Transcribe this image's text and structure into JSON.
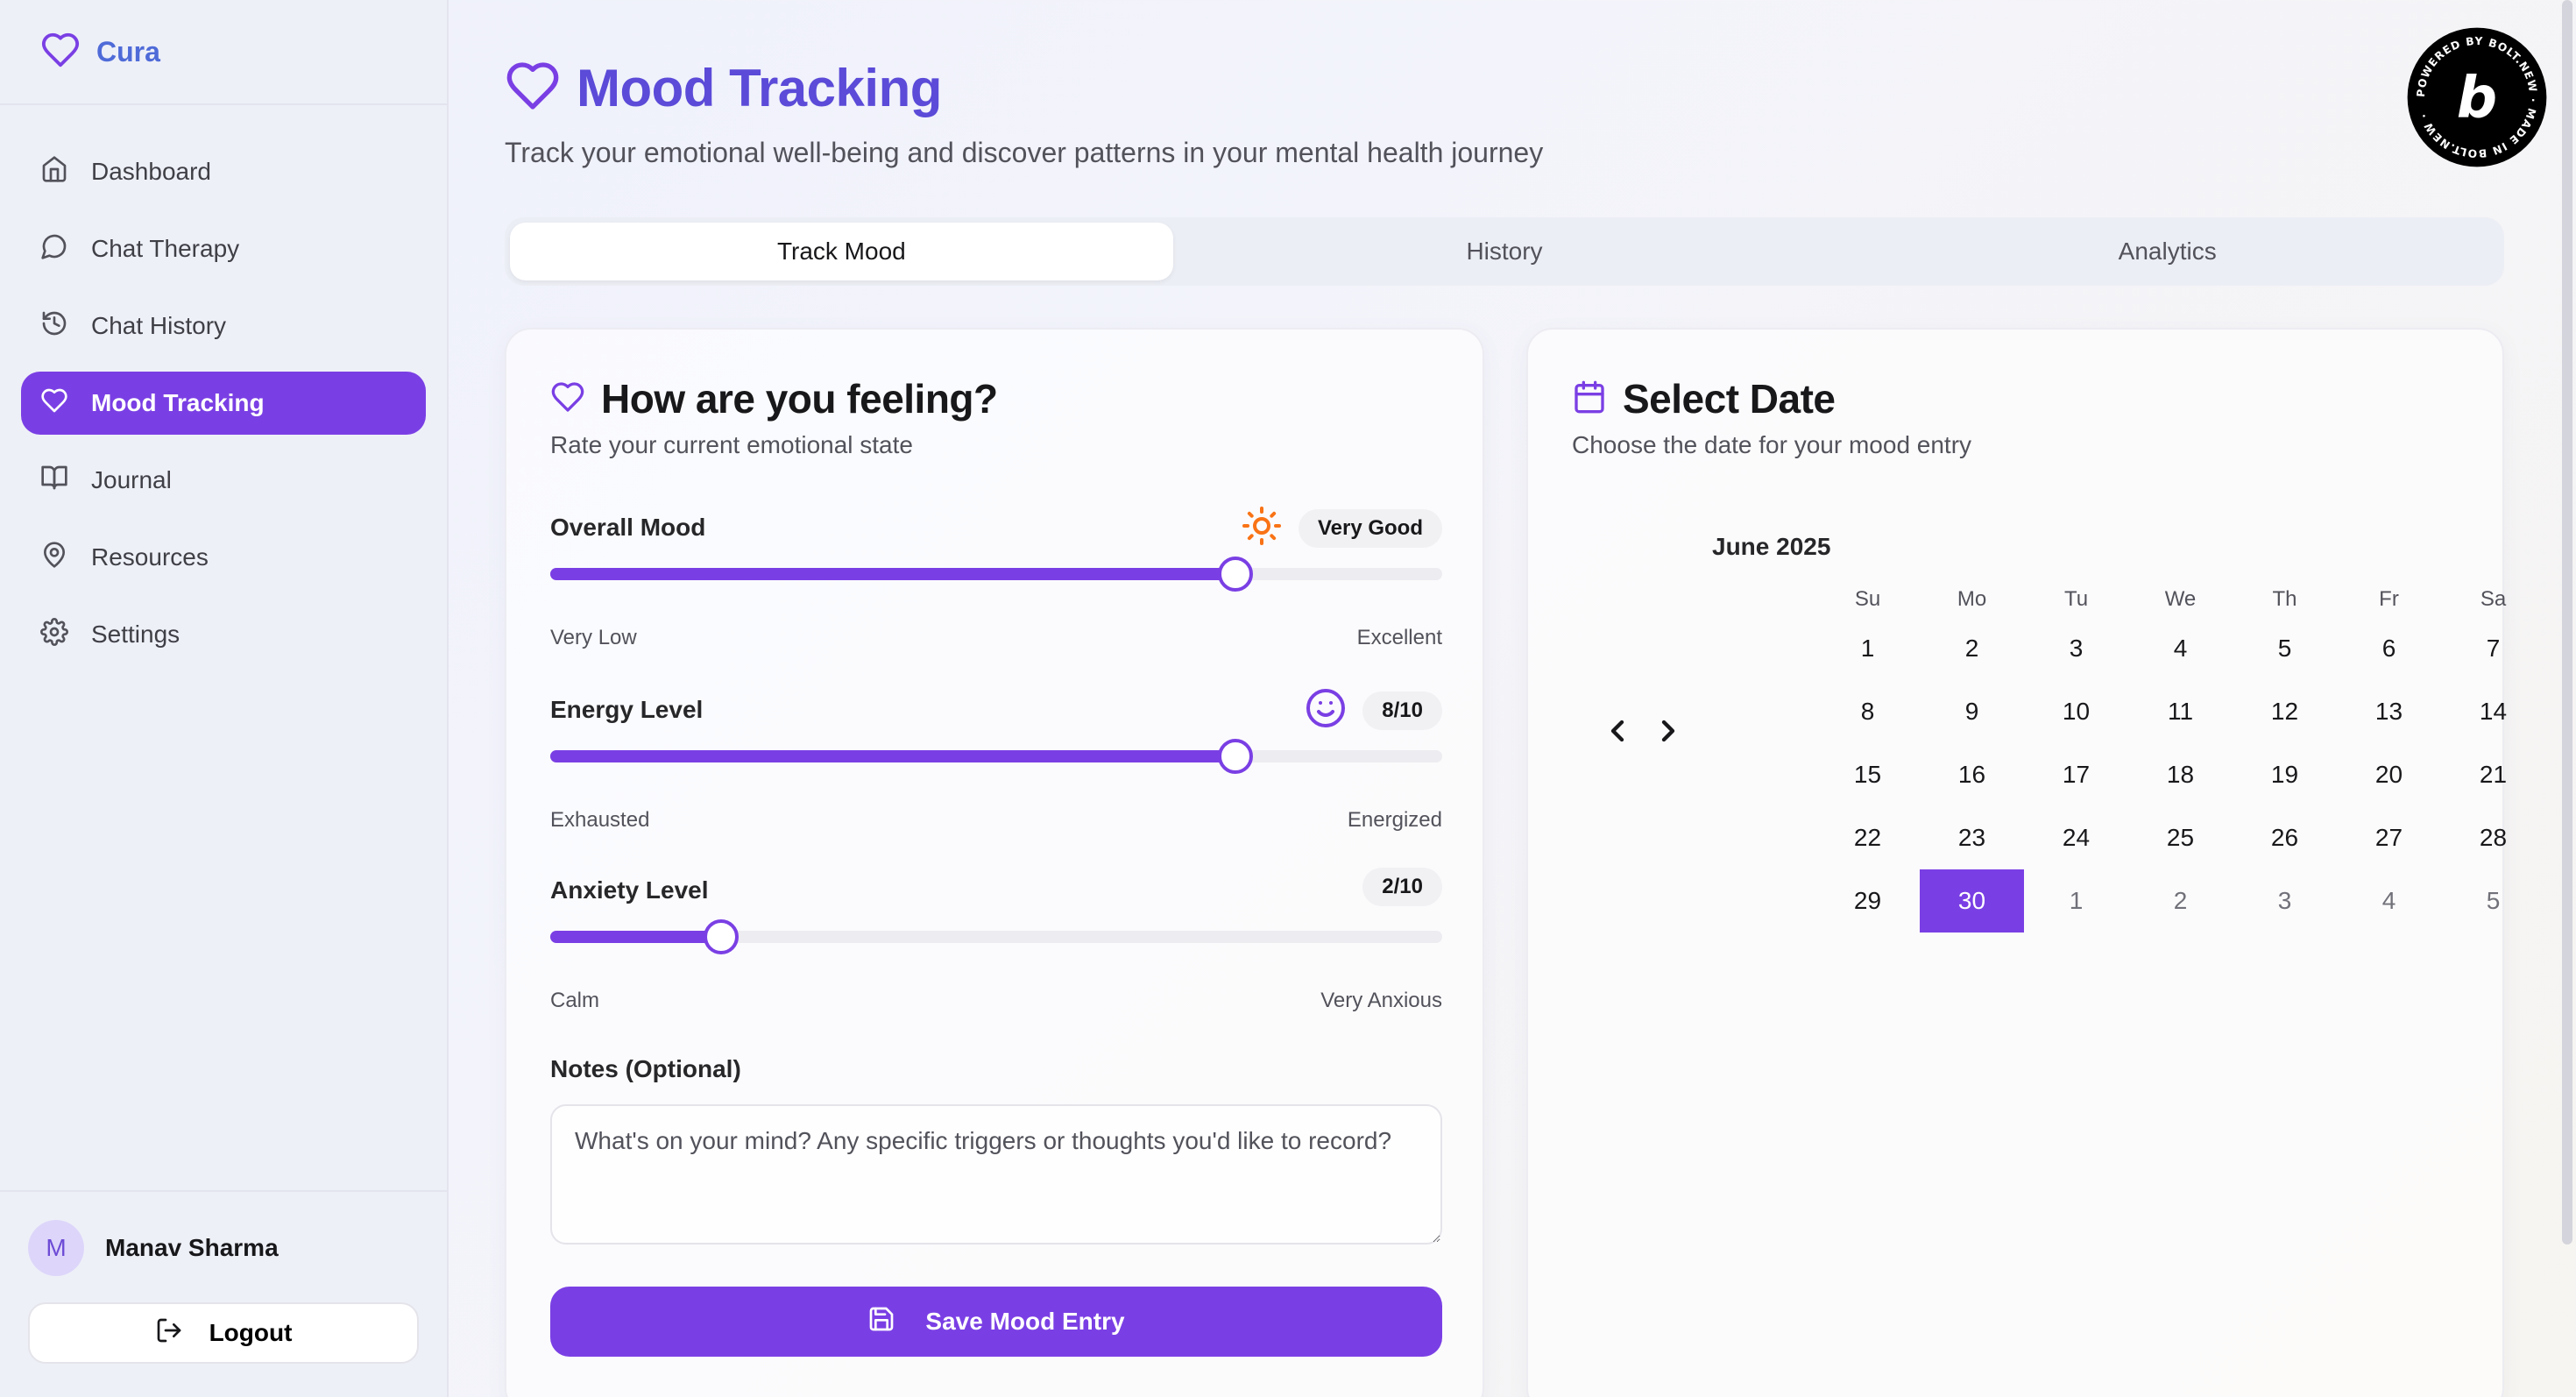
{
  "app": {
    "name": "Cura"
  },
  "sidebar": {
    "items": [
      {
        "label": "Dashboard",
        "icon": "home-icon"
      },
      {
        "label": "Chat Therapy",
        "icon": "chat-bubble-icon"
      },
      {
        "label": "Chat History",
        "icon": "history-icon"
      },
      {
        "label": "Mood Tracking",
        "icon": "heart-icon",
        "active": true
      },
      {
        "label": "Journal",
        "icon": "book-icon"
      },
      {
        "label": "Resources",
        "icon": "map-pin-icon"
      },
      {
        "label": "Settings",
        "icon": "gear-icon"
      }
    ],
    "user": {
      "initial": "M",
      "name": "Manav Sharma"
    },
    "logout_label": "Logout"
  },
  "header": {
    "title": "Mood Tracking",
    "subtitle": "Track your emotional well-being and discover patterns in your mental health journey"
  },
  "tabs": [
    {
      "label": "Track Mood",
      "active": true
    },
    {
      "label": "History"
    },
    {
      "label": "Analytics"
    }
  ],
  "mood_card": {
    "title": "How are you feeling?",
    "subtitle": "Rate your current emotional state",
    "fields": [
      {
        "label": "Overall Mood",
        "icon": "sun-icon",
        "badge": "Very Good",
        "value": 8,
        "max": 10,
        "low": "Very Low",
        "high": "Excellent"
      },
      {
        "label": "Energy Level",
        "icon": "smile-icon",
        "badge": "8/10",
        "value": 8,
        "max": 10,
        "low": "Exhausted",
        "high": "Energized"
      },
      {
        "label": "Anxiety Level",
        "badge": "2/10",
        "value": 2,
        "max": 10,
        "low": "Calm",
        "high": "Very Anxious"
      }
    ],
    "notes_label": "Notes (Optional)",
    "notes_placeholder": "What's on your mind? Any specific triggers or thoughts you'd like to record?",
    "save_label": "Save Mood Entry"
  },
  "date_card": {
    "title": "Select Date",
    "subtitle": "Choose the date for your mood entry",
    "month": "June 2025",
    "weekdays": [
      "Su",
      "Mo",
      "Tu",
      "We",
      "Th",
      "Fr",
      "Sa"
    ],
    "weeks": [
      [
        "1",
        "2",
        "3",
        "4",
        "5",
        "6",
        "7"
      ],
      [
        "8",
        "9",
        "10",
        "11",
        "12",
        "13",
        "14"
      ],
      [
        "15",
        "16",
        "17",
        "18",
        "19",
        "20",
        "21"
      ],
      [
        "22",
        "23",
        "24",
        "25",
        "26",
        "27",
        "28"
      ],
      [
        "29",
        "30",
        "1",
        "2",
        "3",
        "4",
        "5"
      ]
    ],
    "selected": "30",
    "outside_days_from_index": 2
  },
  "badge": {
    "text": "POWERED BY BOLT.NEW · MADE IN BOLT.NEW ·"
  },
  "colors": {
    "accent": "#7a3fe4",
    "title": "#5b4bd8",
    "brand": "#4f6bd8",
    "sun": "#f97316"
  }
}
